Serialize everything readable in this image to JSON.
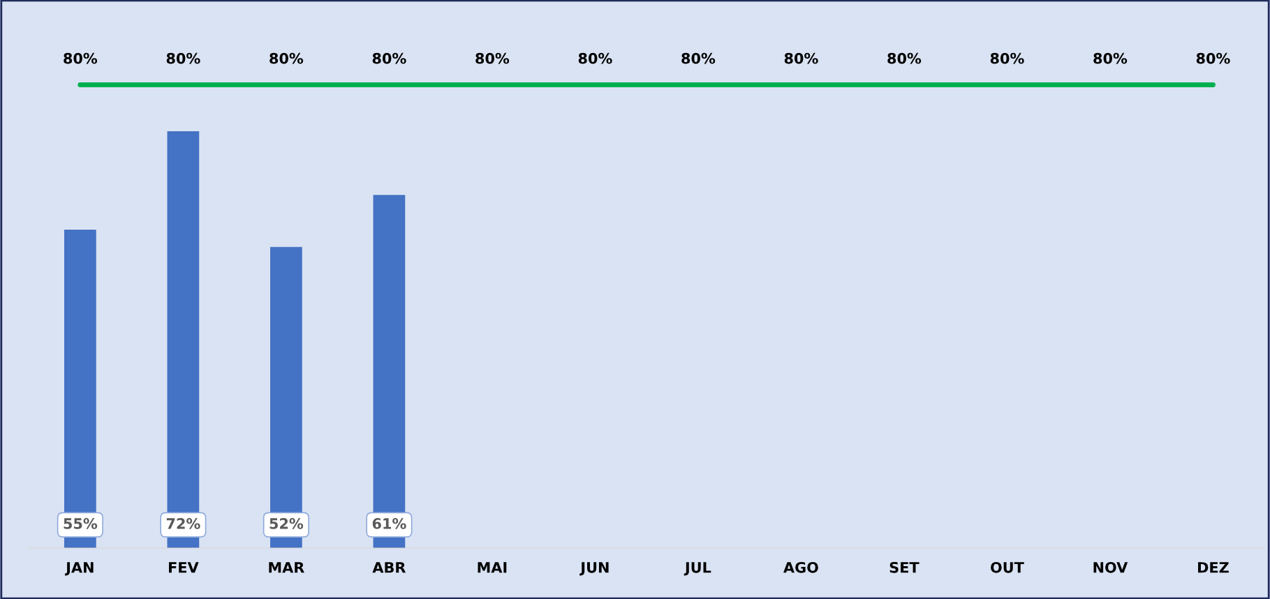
{
  "chart_data": {
    "type": "bar",
    "categories": [
      "JAN",
      "FEV",
      "MAR",
      "ABR",
      "MAI",
      "JUN",
      "JUL",
      "AGO",
      "SET",
      "OUT",
      "NOV",
      "DEZ"
    ],
    "series": [
      {
        "color": "#4472c4",
        "values": [
          55,
          72,
          52,
          61,
          null,
          null,
          null,
          null,
          null,
          null,
          null,
          null
        ],
        "value_labels": [
          "55%",
          "72%",
          "52%",
          "61%",
          null,
          null,
          null,
          null,
          null,
          null,
          null,
          null
        ]
      },
      {
        "type": "line",
        "color": "#00b050",
        "values": [
          80,
          80,
          80,
          80,
          80,
          80,
          80,
          80,
          80,
          80,
          80,
          80
        ],
        "value_labels": [
          "80%",
          "80%",
          "80%",
          "80%",
          "80%",
          "80%",
          "80%",
          "80%",
          "80%",
          "80%",
          "80%",
          "80%"
        ]
      }
    ],
    "tick_labels": "x",
    "line_style": "solid"
  }
}
